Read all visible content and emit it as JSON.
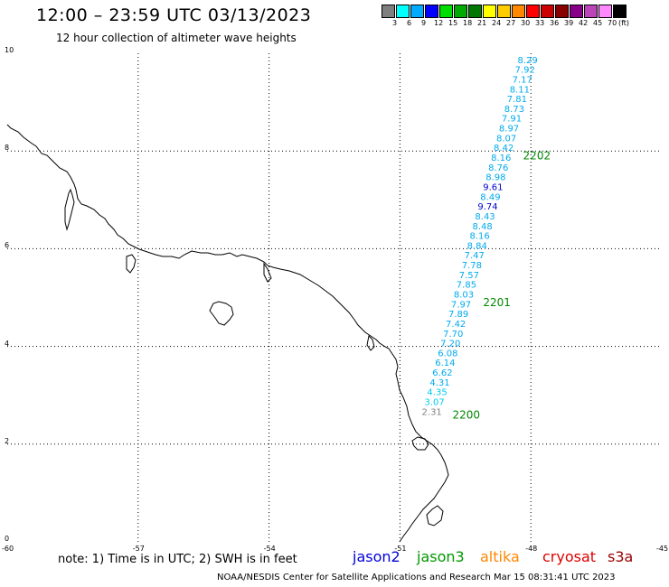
{
  "header": {
    "title": "12:00 – 23:59 UTC 03/13/2023",
    "subtitle": "12 hour collection of altimeter wave heights"
  },
  "scale": {
    "colors": [
      "#7f7f7f",
      "#00ffff",
      "#00aaff",
      "#0000ff",
      "#00dd00",
      "#00aa00",
      "#007700",
      "#ffff00",
      "#ffcc00",
      "#ff8800",
      "#ff0000",
      "#cc0000",
      "#880000",
      "#880088",
      "#bb44bb",
      "#ff88ff",
      "#000000"
    ],
    "labels": [
      "3",
      "6",
      "9",
      "12",
      "15",
      "18",
      "21",
      "24",
      "27",
      "30",
      "33",
      "36",
      "39",
      "42",
      "45",
      "70",
      "(ft)"
    ]
  },
  "axes": {
    "y_ticks": [
      "10",
      "8",
      "6",
      "4",
      "2",
      "0"
    ],
    "x_ticks": [
      "-60",
      "-57",
      "-54",
      "-51",
      "-48",
      "-45"
    ]
  },
  "track": {
    "passes": [
      {
        "label": "2200",
        "lat": 2.6,
        "lon": -50.2
      },
      {
        "label": "2201",
        "lat": 4.9,
        "lon": -49.5
      },
      {
        "label": "2202",
        "lat": 7.9,
        "lon": -48.6
      }
    ],
    "points": [
      {
        "v": "2.31",
        "c": "#7f7f7f",
        "lat": 2.6
      },
      {
        "v": "3.07",
        "c": "#00ccee",
        "lat": 2.8
      },
      {
        "v": "4.35",
        "c": "#00ccee",
        "lat": 3.0
      },
      {
        "v": "4.31",
        "c": "#00aaee",
        "lat": 3.2
      },
      {
        "v": "6.62",
        "c": "#00aaee",
        "lat": 3.4
      },
      {
        "v": "6.14",
        "c": "#00aaee",
        "lat": 3.6
      },
      {
        "v": "6.08",
        "c": "#00aaee",
        "lat": 3.8
      },
      {
        "v": "7.20",
        "c": "#00aaee",
        "lat": 4.0
      },
      {
        "v": "7.70",
        "c": "#00aaee",
        "lat": 4.2
      },
      {
        "v": "7.42",
        "c": "#00aaee",
        "lat": 4.4
      },
      {
        "v": "7.89",
        "c": "#00aaee",
        "lat": 4.6
      },
      {
        "v": "7.97",
        "c": "#00aaee",
        "lat": 4.8
      },
      {
        "v": "8.03",
        "c": "#00aaee",
        "lat": 5.0
      },
      {
        "v": "7.85",
        "c": "#00aaee",
        "lat": 5.2
      },
      {
        "v": "7.57",
        "c": "#00aaee",
        "lat": 5.4
      },
      {
        "v": "7.78",
        "c": "#00aaee",
        "lat": 5.6
      },
      {
        "v": "7.47",
        "c": "#00aaee",
        "lat": 5.8
      },
      {
        "v": "8.84",
        "c": "#00aaee",
        "lat": 6.0
      },
      {
        "v": "8.16",
        "c": "#00aaee",
        "lat": 6.2
      },
      {
        "v": "8.48",
        "c": "#00aaee",
        "lat": 6.4
      },
      {
        "v": "8.43",
        "c": "#00aaee",
        "lat": 6.6
      },
      {
        "v": "9.74",
        "c": "#0000cc",
        "lat": 6.8
      },
      {
        "v": "8.49",
        "c": "#00aaee",
        "lat": 7.0
      },
      {
        "v": "9.61",
        "c": "#0000cc",
        "lat": 7.2
      },
      {
        "v": "8.98",
        "c": "#00aaee",
        "lat": 7.4
      },
      {
        "v": "8.76",
        "c": "#00aaee",
        "lat": 7.6
      },
      {
        "v": "8.16",
        "c": "#00aaee",
        "lat": 7.8
      },
      {
        "v": "8.42",
        "c": "#00aaee",
        "lat": 8.0
      },
      {
        "v": "8.07",
        "c": "#00aaee",
        "lat": 8.2
      },
      {
        "v": "8.97",
        "c": "#00aaee",
        "lat": 8.4
      },
      {
        "v": "7.91",
        "c": "#00aaee",
        "lat": 8.6
      },
      {
        "v": "8.73",
        "c": "#00aaee",
        "lat": 8.8
      },
      {
        "v": "7.81",
        "c": "#00aaee",
        "lat": 9.0
      },
      {
        "v": "8.11",
        "c": "#00aaee",
        "lat": 9.2
      },
      {
        "v": "7.17",
        "c": "#00aaee",
        "lat": 9.4
      },
      {
        "v": "7.92",
        "c": "#00aaee",
        "lat": 9.6
      },
      {
        "v": "8.29",
        "c": "#00aaee",
        "lat": 9.8
      }
    ]
  },
  "footer": {
    "note": "note: 1) Time is in UTC; 2) SWH is in feet",
    "credit": "NOAA/NESDIS Center for Satellite Applications and Research    Mar 15 08:31:41 UTC 2023",
    "satellites": [
      {
        "name": "jason2",
        "color": "#0000dd"
      },
      {
        "name": "jason3",
        "color": "#009900"
      },
      {
        "name": "altika",
        "color": "#ff8800"
      },
      {
        "name": "cryosat",
        "color": "#dd0000"
      },
      {
        "name": "s3a",
        "color": "#990000"
      }
    ]
  },
  "colors": {
    "pass_label": "#008800",
    "coast": "#000000",
    "grid": "#000000"
  }
}
